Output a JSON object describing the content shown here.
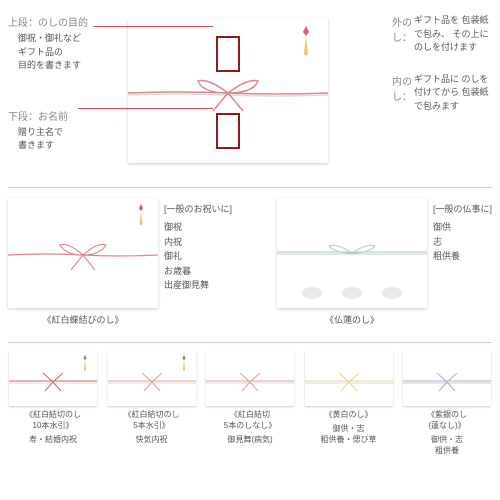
{
  "top": {
    "upper": {
      "title": "上段：のしの目的",
      "text": "御祝・御礼など\nギフト品の\n目的を書きます"
    },
    "lower": {
      "title": "下段：お名前",
      "text": "贈り主名で\n書きます"
    },
    "outer": {
      "title": "外のし：",
      "text": "ギフト品を\n包装紙で包み、\nその上に\nのしを付けます"
    },
    "inner": {
      "title": "内のし：",
      "text": "ギフト品に\nのしを付けてから\n包装紙で包みます"
    }
  },
  "mid": {
    "left": {
      "caption": "《紅白蝶結びのし》",
      "listTitle": "[一般のお祝いに]",
      "items": [
        "御祝",
        "内祝",
        "御礼",
        "お歳暮",
        "出産御見舞"
      ]
    },
    "right": {
      "caption": "《仏蓮のし》",
      "listTitle": "[一般の仏事に]",
      "items": [
        "御供",
        "志",
        "粗供養"
      ]
    }
  },
  "bot": {
    "items": [
      {
        "title": "《紅白結切のし\n10本水引》",
        "sub": "寿・結婚内祝",
        "color1": "#d4606a",
        "color2": "#ddd"
      },
      {
        "title": "《紅白結切のし\n5本水引》",
        "sub": "快気内祝",
        "color1": "#e89898",
        "color2": "#ddd"
      },
      {
        "title": "《紅白結切\n5本のしなし》",
        "sub": "御見舞(病気)",
        "color1": "#e89898",
        "color2": "#ddd"
      },
      {
        "title": "《黄白のし》",
        "sub": "御供・志\n粗供養・偲び草",
        "color1": "#e8d888",
        "color2": "#ddd"
      },
      {
        "title": "《紫銀のし\n(蓮なし)》",
        "sub": "御供・志\n粗供養",
        "color1": "#b8a8c8",
        "color2": "#ccc"
      }
    ]
  }
}
